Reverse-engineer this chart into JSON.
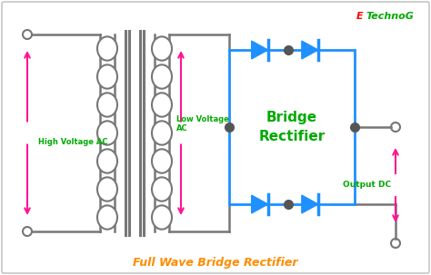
{
  "title": "Full Wave Bridge Rectifier",
  "title_color": "#FF8C00",
  "title_fontsize": 9,
  "bg_color": "#FFFFFF",
  "border_color": "#BBBBBB",
  "wire_color": "#777777",
  "diode_color": "#1E90FF",
  "arrow_color": "#FF1493",
  "text_color_green": "#00AA00",
  "text_color_red": "#FF0000",
  "label_hv": "High Voltage AC",
  "label_lv": "Low Voltage\nAC",
  "label_bridge": "Bridge\nRectifier",
  "label_output": "Output DC",
  "label_etechnog_e": "E",
  "label_etechnog_rest": "TechnoG",
  "figsize": [
    4.74,
    3.03
  ],
  "dpi": 100
}
